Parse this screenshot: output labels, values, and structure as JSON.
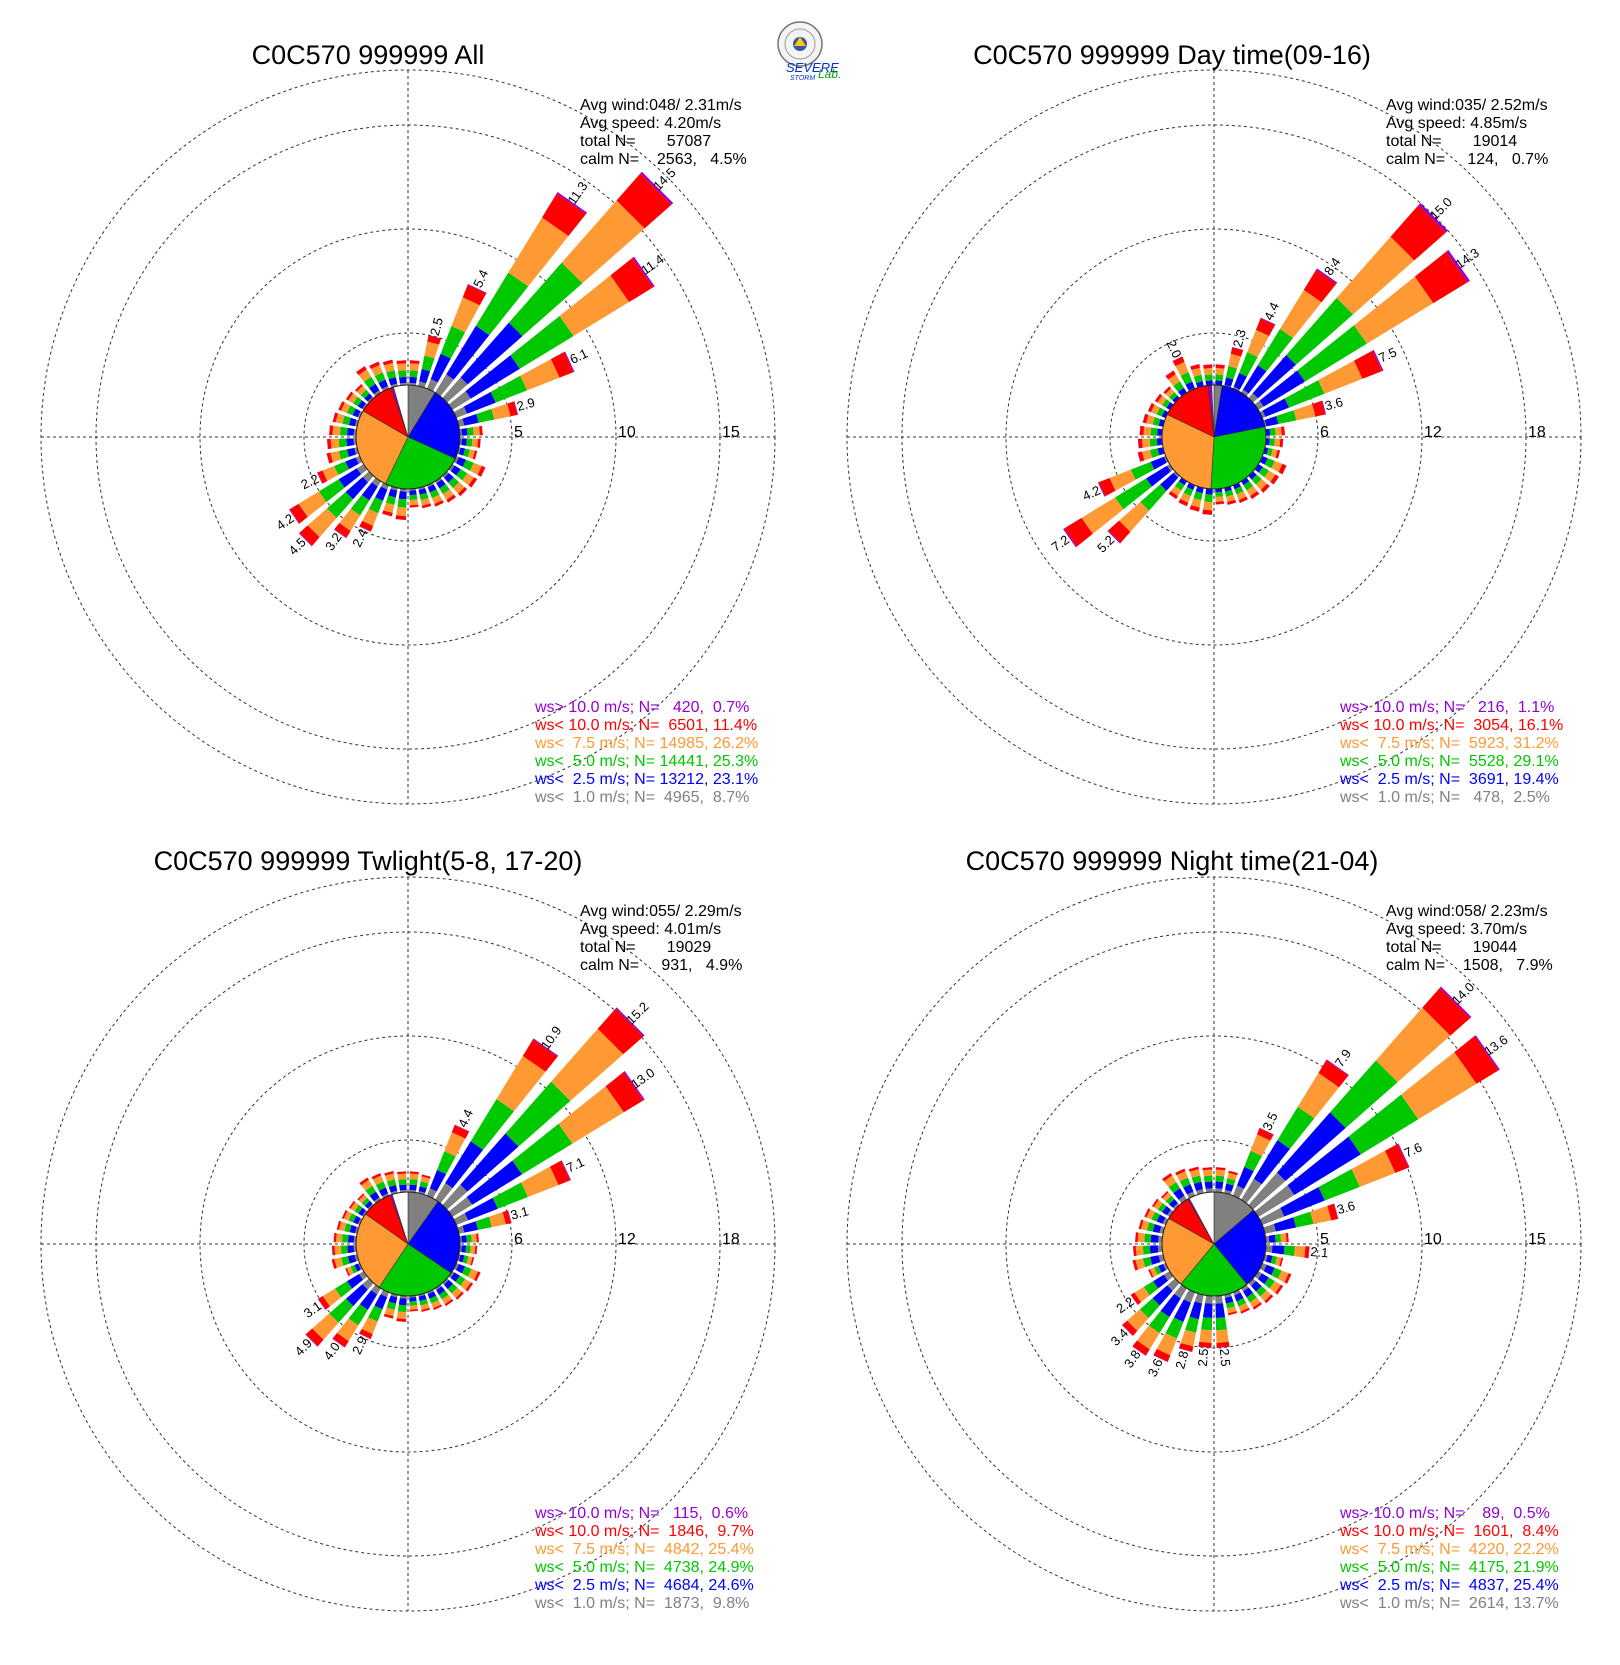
{
  "colors": {
    "gt10": "#9400d3",
    "lt10": "#ff0000",
    "lt75": "#ff9933",
    "lt5": "#00c800",
    "lt25": "#0000ff",
    "lt1": "#808080",
    "calm": "#ffffff"
  },
  "logo": {
    "text_severe": "SEVERE",
    "text_storm": "STORM",
    "text_lab": "Lab."
  },
  "chart_data": [
    {
      "type": "wind-rose",
      "title": "C0C570 999999 All",
      "rings": [
        5,
        10,
        15
      ],
      "stats": [
        "Avg wind:048/ 2.31m/s",
        "Avg speed: 4.20m/s",
        "total N=       57087",
        "calm N=    2563,   4.5%"
      ],
      "legend": [
        "ws> 10.0 m/s; N=   420,  0.7%",
        "ws< 10.0 m/s; N=  6501, 11.4%",
        "ws<  7.5 m/s; N= 14985, 26.2%",
        "ws<  5.0 m/s; N= 14441, 25.3%",
        "ws<  2.5 m/s; N= 13212, 23.1%",
        "ws<  1.0 m/s; N=  4965,  8.7%"
      ],
      "labeled_spokes": [
        {
          "dir": 15,
          "label": "2.5"
        },
        {
          "dir": 25,
          "label": "5.4"
        },
        {
          "dir": 35,
          "label": "11.3"
        },
        {
          "dir": 45,
          "label": "14.5"
        },
        {
          "dir": 55,
          "label": "11.4"
        },
        {
          "dir": 65,
          "label": "6.1"
        },
        {
          "dir": 75,
          "label": "2.9"
        },
        {
          "dir": 205,
          "label": "2.4"
        },
        {
          "dir": 215,
          "label": "3.2"
        },
        {
          "dir": 225,
          "label": "4.5"
        },
        {
          "dir": 235,
          "label": "4.2"
        },
        {
          "dir": 245,
          "label": "2.2"
        }
      ],
      "pie": [
        8.7,
        23.1,
        25.3,
        26.2,
        11.4,
        0.7,
        4.5
      ]
    },
    {
      "type": "wind-rose",
      "title": "C0C570 999999 Day time(09-16)",
      "rings": [
        6,
        12,
        18
      ],
      "stats": [
        "Avg wind:035/ 2.52m/s",
        "Avg speed: 4.85m/s",
        "total N=       19014",
        "calm N=     124,   0.7%"
      ],
      "legend": [
        "ws> 10.0 m/s; N=   216,  1.1%",
        "ws< 10.0 m/s; N=  3054, 16.1%",
        "ws<  7.5 m/s; N=  5923, 31.2%",
        "ws<  5.0 m/s; N=  5528, 29.1%",
        "ws<  2.5 m/s; N=  3691, 19.4%",
        "ws<  1.0 m/s; N=   478,  2.5%"
      ],
      "labeled_spokes": [
        {
          "dir": 15,
          "label": "2.3"
        },
        {
          "dir": 25,
          "label": "4.4"
        },
        {
          "dir": 35,
          "label": "8.4"
        },
        {
          "dir": 45,
          "label": "15.0"
        },
        {
          "dir": 55,
          "label": "14.3"
        },
        {
          "dir": 65,
          "label": "7.5"
        },
        {
          "dir": 75,
          "label": "3.6"
        },
        {
          "dir": 225,
          "label": "5.2"
        },
        {
          "dir": 235,
          "label": "7.2"
        },
        {
          "dir": 245,
          "label": "4.2"
        },
        {
          "dir": 335,
          "label": "2.0"
        }
      ],
      "pie": [
        2.5,
        19.4,
        29.1,
        31.2,
        16.1,
        1.1,
        0.7
      ]
    },
    {
      "type": "wind-rose",
      "title": "C0C570 999999 Twlight(5-8, 17-20)",
      "rings": [
        6,
        12,
        18
      ],
      "stats": [
        "Avg wind:055/ 2.29m/s",
        "Avg speed: 4.01m/s",
        "total N=       19029",
        "calm N=     931,   4.9%"
      ],
      "legend": [
        "ws> 10.0 m/s; N=   115,  0.6%",
        "ws< 10.0 m/s; N=  1846,  9.7%",
        "ws<  7.5 m/s; N=  4842, 25.4%",
        "ws<  5.0 m/s; N=  4738, 24.9%",
        "ws<  2.5 m/s; N=  4684, 24.6%",
        "ws<  1.0 m/s; N=  1873,  9.8%"
      ],
      "labeled_spokes": [
        {
          "dir": 25,
          "label": "4.4"
        },
        {
          "dir": 35,
          "label": "10.9"
        },
        {
          "dir": 45,
          "label": "15.2"
        },
        {
          "dir": 55,
          "label": "13.0"
        },
        {
          "dir": 65,
          "label": "7.1"
        },
        {
          "dir": 75,
          "label": "3.1"
        },
        {
          "dir": 205,
          "label": "2.9"
        },
        {
          "dir": 215,
          "label": "4.0"
        },
        {
          "dir": 225,
          "label": "4.9"
        },
        {
          "dir": 235,
          "label": "3.1"
        }
      ],
      "pie": [
        9.8,
        24.6,
        24.9,
        25.4,
        9.7,
        0.6,
        4.9
      ]
    },
    {
      "type": "wind-rose",
      "title": "C0C570 999999 Night time(21-04)",
      "rings": [
        5,
        10,
        15
      ],
      "stats": [
        "Avg wind:058/ 2.23m/s",
        "Avg speed: 3.70m/s",
        "total N=       19044",
        "calm N=    1508,   7.9%"
      ],
      "legend": [
        "ws> 10.0 m/s; N=    89,  0.5%",
        "ws< 10.0 m/s; N=  1601,  8.4%",
        "ws<  7.5 m/s; N=  4220, 22.2%",
        "ws<  5.0 m/s; N=  4175, 21.9%",
        "ws<  2.5 m/s; N=  4837, 25.4%",
        "ws<  1.0 m/s; N=  2614, 13.7%"
      ],
      "labeled_spokes": [
        {
          "dir": 25,
          "label": "3.5"
        },
        {
          "dir": 35,
          "label": "7.9"
        },
        {
          "dir": 45,
          "label": "14.0"
        },
        {
          "dir": 55,
          "label": "13.6"
        },
        {
          "dir": 65,
          "label": "7.6"
        },
        {
          "dir": 75,
          "label": "3.6"
        },
        {
          "dir": 95,
          "label": "2.1"
        },
        {
          "dir": 175,
          "label": "2.5"
        },
        {
          "dir": 185,
          "label": "2.5"
        },
        {
          "dir": 195,
          "label": "2.8"
        },
        {
          "dir": 205,
          "label": "3.6"
        },
        {
          "dir": 215,
          "label": "3.8"
        },
        {
          "dir": 225,
          "label": "3.4"
        },
        {
          "dir": 235,
          "label": "2.2"
        }
      ],
      "pie": [
        13.7,
        25.4,
        21.9,
        22.2,
        8.4,
        0.5,
        7.9
      ]
    }
  ]
}
